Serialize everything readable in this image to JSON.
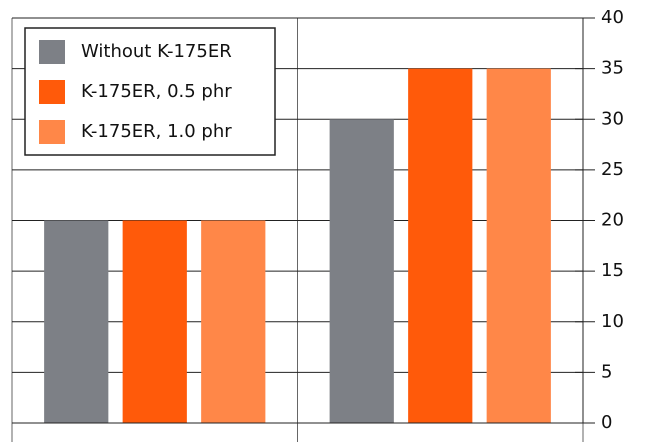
{
  "chart_data": {
    "type": "bar",
    "categories": [
      null,
      null
    ],
    "series": [
      {
        "name": "Without K-175ER",
        "color": "#7d8086",
        "values": [
          20,
          30
        ]
      },
      {
        "name": "K-175ER, 0.5 phr",
        "color": "#ff5a0a",
        "values": [
          20,
          35
        ]
      },
      {
        "name": "K-175ER, 1.0 phr",
        "color": "#ff8748",
        "values": [
          20,
          35
        ]
      }
    ],
    "ylim": [
      0,
      40
    ],
    "yticks": [
      0,
      5,
      10,
      15,
      20,
      25,
      30,
      35,
      40
    ],
    "grid": true,
    "y_axis_side": "right",
    "legend": "upper left"
  }
}
